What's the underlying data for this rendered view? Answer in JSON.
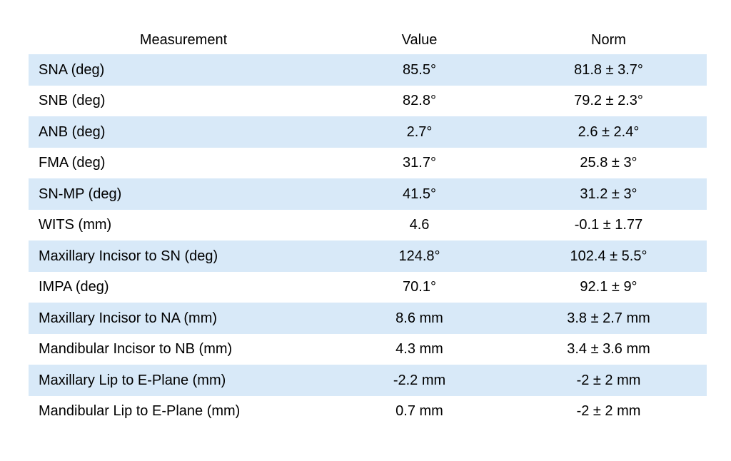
{
  "colors": {
    "band": "#D8E9F8",
    "background": "#FFFFFF",
    "text": "#000000"
  },
  "chart_data": {
    "type": "table",
    "title": "",
    "headers": {
      "measurement": "Measurement",
      "value": "Value",
      "norm": "Norm"
    },
    "rows": [
      {
        "measurement": "SNA (deg)",
        "value": "85.5°",
        "norm": "81.8 ± 3.7°"
      },
      {
        "measurement": "SNB (deg)",
        "value": "82.8°",
        "norm": "79.2 ± 2.3°"
      },
      {
        "measurement": "ANB (deg)",
        "value": "2.7°",
        "norm": "2.6 ± 2.4°"
      },
      {
        "measurement": "FMA (deg)",
        "value": "31.7°",
        "norm": "25.8 ± 3°"
      },
      {
        "measurement": "SN-MP (deg)",
        "value": "41.5°",
        "norm": "31.2 ± 3°"
      },
      {
        "measurement": "WITS (mm)",
        "value": "4.6",
        "norm": "-0.1 ± 1.77"
      },
      {
        "measurement": "Maxillary Incisor to SN (deg)",
        "value": "124.8°",
        "norm": "102.4 ± 5.5°"
      },
      {
        "measurement": "IMPA (deg)",
        "value": "70.1°",
        "norm": "92.1 ± 9°"
      },
      {
        "measurement": "Maxillary Incisor to NA (mm)",
        "value": "8.6 mm",
        "norm": "3.8 ± 2.7 mm"
      },
      {
        "measurement": "Mandibular Incisor to NB (mm)",
        "value": "4.3 mm",
        "norm": "3.4 ± 3.6 mm"
      },
      {
        "measurement": "Maxillary Lip to E-Plane (mm)",
        "value": "-2.2 mm",
        "norm": "-2 ± 2 mm"
      },
      {
        "measurement": "Mandibular Lip to E-Plane (mm)",
        "value": "0.7 mm",
        "norm": "-2 ± 2 mm"
      }
    ]
  }
}
